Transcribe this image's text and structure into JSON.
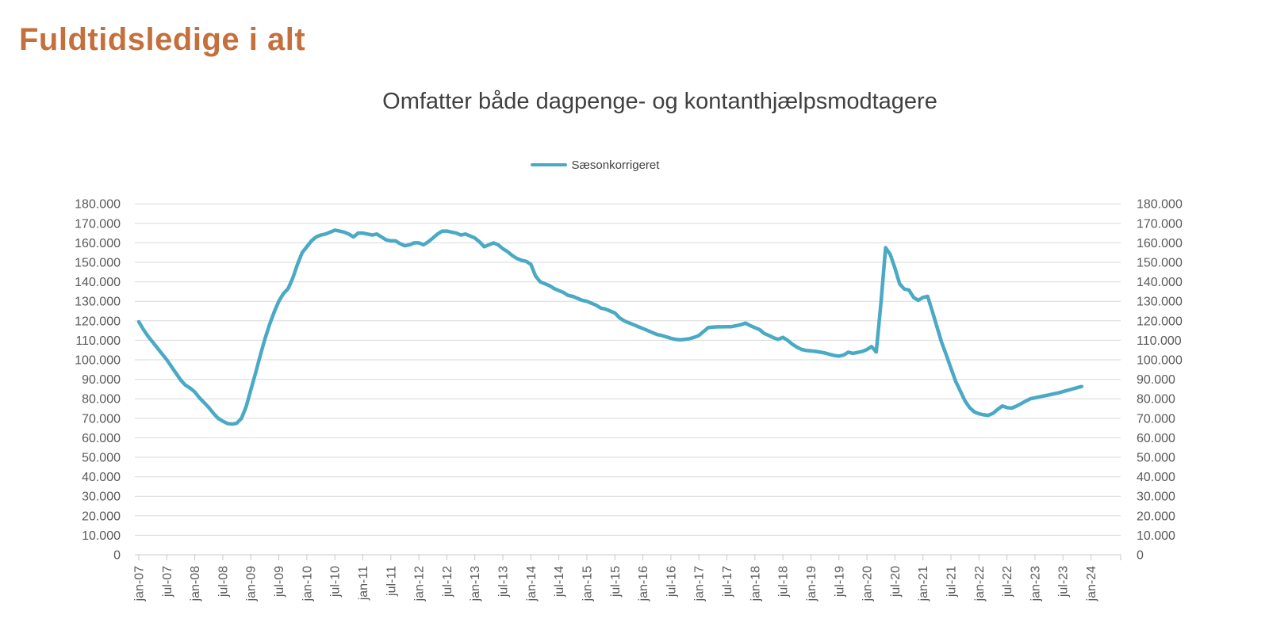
{
  "header": {
    "title": "Fuldtidsledige i alt"
  },
  "colors": {
    "title": "#C4703C",
    "line": "#4AA9C4",
    "subtitle_text": "#404040",
    "axis_labels": "#595959",
    "gridline": "#D9D9D9",
    "axis_line": "#C8C8C8"
  },
  "chart_data": {
    "type": "line",
    "title": "Omfatter både dagpenge- og kontanthjælpsmodtagere",
    "legend_position": "top-center",
    "grid": "horizontal",
    "y_axis_sides": "both",
    "ylim": [
      0,
      180000
    ],
    "y_tick_step": 10000,
    "y_tick_labels": [
      "0",
      "10.000",
      "20.000",
      "30.000",
      "40.000",
      "50.000",
      "60.000",
      "70.000",
      "80.000",
      "90.000",
      "100.000",
      "110.000",
      "120.000",
      "130.000",
      "140.000",
      "150.000",
      "160.000",
      "170.000",
      "180.000"
    ],
    "x_frequency": "monthly",
    "x_start": "jan-07",
    "x_last_data": "nov-23",
    "x_tick_interval_months": 6,
    "x_tick_labels": [
      "jan-07",
      "jul-07",
      "jan-08",
      "jul-08",
      "jan-09",
      "jul-09",
      "jan-10",
      "jul-10",
      "jan-11",
      "jul-11",
      "jan-12",
      "jul-12",
      "jan-13",
      "jul-13",
      "jan-14",
      "jul-14",
      "jan-15",
      "jul-15",
      "jan-16",
      "jul-16",
      "jan-17",
      "jul-17",
      "jan-18",
      "jul-18",
      "jan-19",
      "jul-19",
      "jan-20",
      "jul-20",
      "jan-21",
      "jul-21",
      "jan-22",
      "jul-22",
      "jan-23",
      "jul-23",
      "jan-24"
    ],
    "series": [
      {
        "name": "Sæsonkorrigeret",
        "values": [
          119500,
          115500,
          112000,
          109000,
          106000,
          103000,
          100000,
          96500,
          93000,
          89500,
          87000,
          85500,
          83500,
          80500,
          78000,
          75500,
          72500,
          70000,
          68500,
          67300,
          67000,
          67500,
          70000,
          76000,
          84500,
          93000,
          102000,
          110500,
          118000,
          124500,
          130000,
          134000,
          136500,
          142000,
          149000,
          155000,
          158000,
          161000,
          163000,
          164000,
          164500,
          165500,
          166500,
          166000,
          165500,
          164500,
          163000,
          165000,
          165000,
          164500,
          164000,
          164500,
          163000,
          161500,
          161000,
          161000,
          159500,
          158500,
          159000,
          160000,
          160000,
          159000,
          160500,
          162500,
          164500,
          166000,
          166000,
          165500,
          165000,
          164000,
          164500,
          163500,
          162500,
          160500,
          158000,
          159000,
          160000,
          159000,
          157000,
          155500,
          153500,
          152000,
          151000,
          150500,
          149000,
          143000,
          140000,
          139000,
          138000,
          136500,
          135500,
          134500,
          133000,
          132500,
          131500,
          130500,
          130000,
          129000,
          128000,
          126500,
          126000,
          125000,
          124000,
          121500,
          120000,
          119000,
          118000,
          117000,
          116000,
          115000,
          114000,
          113000,
          112500,
          111800,
          111000,
          110500,
          110300,
          110500,
          110800,
          111500,
          112500,
          114500,
          116500,
          116800,
          116900,
          116900,
          117000,
          117000,
          117500,
          118000,
          118800,
          117500,
          116500,
          115500,
          113500,
          112500,
          111300,
          110500,
          111500,
          110000,
          108000,
          106500,
          105300,
          104800,
          104600,
          104300,
          103900,
          103500,
          102800,
          102200,
          101900,
          102400,
          103900,
          103300,
          103800,
          104300,
          105300,
          106800,
          104000,
          129000,
          157500,
          154000,
          147000,
          139000,
          136300,
          135800,
          132000,
          130500,
          132000,
          132500,
          125000,
          117000,
          109000,
          102500,
          95700,
          89000,
          84000,
          79000,
          75500,
          73300,
          72300,
          71800,
          71500,
          72500,
          74500,
          76300,
          75500,
          75200,
          76200,
          77500,
          78800,
          80000,
          80500,
          81000,
          81500,
          82000,
          82500,
          83000,
          83700,
          84300,
          85000,
          85700,
          86300
        ]
      }
    ]
  }
}
